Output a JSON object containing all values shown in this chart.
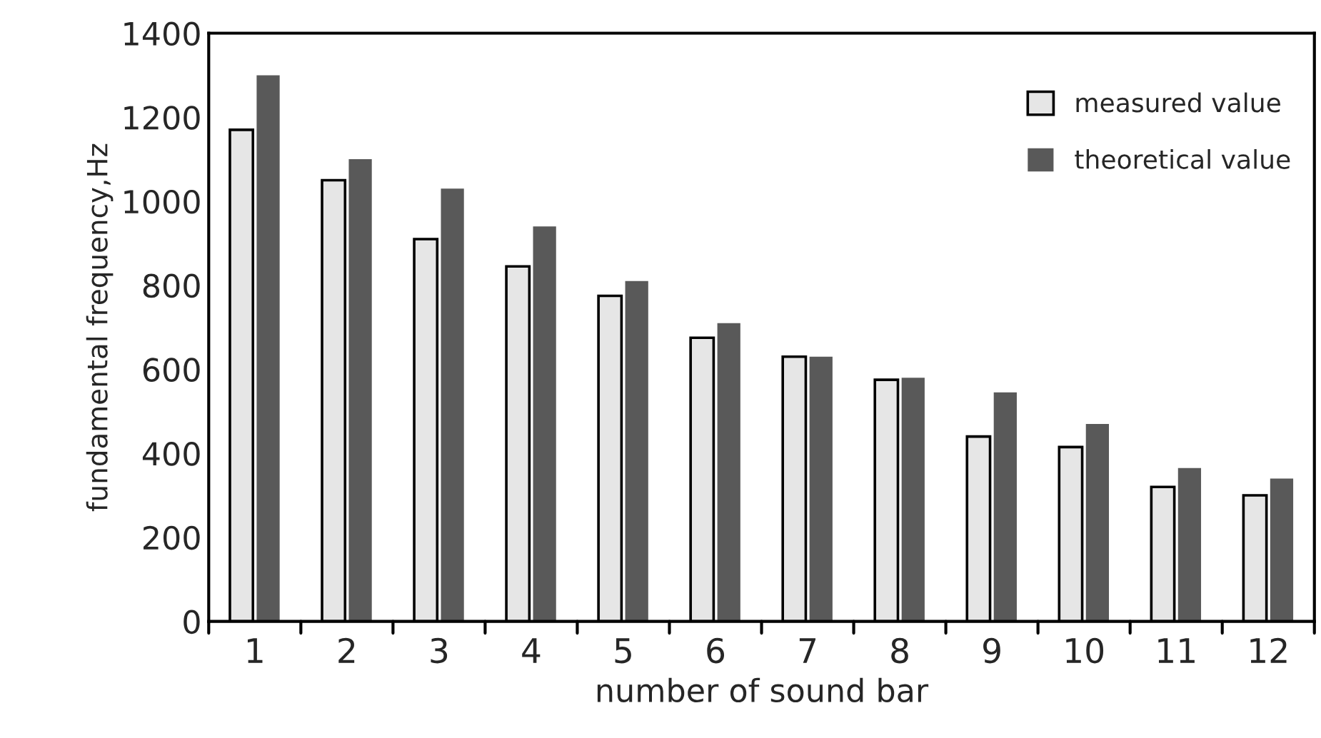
{
  "chart_data": {
    "type": "bar",
    "xlabel": "number of sound bar",
    "ylabel": "fundamental frequency,Hz",
    "categories": [
      "1",
      "2",
      "3",
      "4",
      "5",
      "6",
      "7",
      "8",
      "9",
      "10",
      "11",
      "12"
    ],
    "series": [
      {
        "name": "measured value",
        "color": "#e6e6e6",
        "values": [
          1170,
          1050,
          910,
          845,
          775,
          675,
          630,
          575,
          440,
          415,
          320,
          300
        ]
      },
      {
        "name": "theoretical value",
        "color": "#595959",
        "values": [
          1300,
          1100,
          1030,
          940,
          810,
          710,
          630,
          580,
          545,
          470,
          365,
          340
        ]
      }
    ],
    "ylim": [
      0,
      1400
    ],
    "yticks": [
      0,
      200,
      400,
      600,
      800,
      1000,
      1200,
      1400
    ],
    "grid": false,
    "legend": "top right"
  }
}
